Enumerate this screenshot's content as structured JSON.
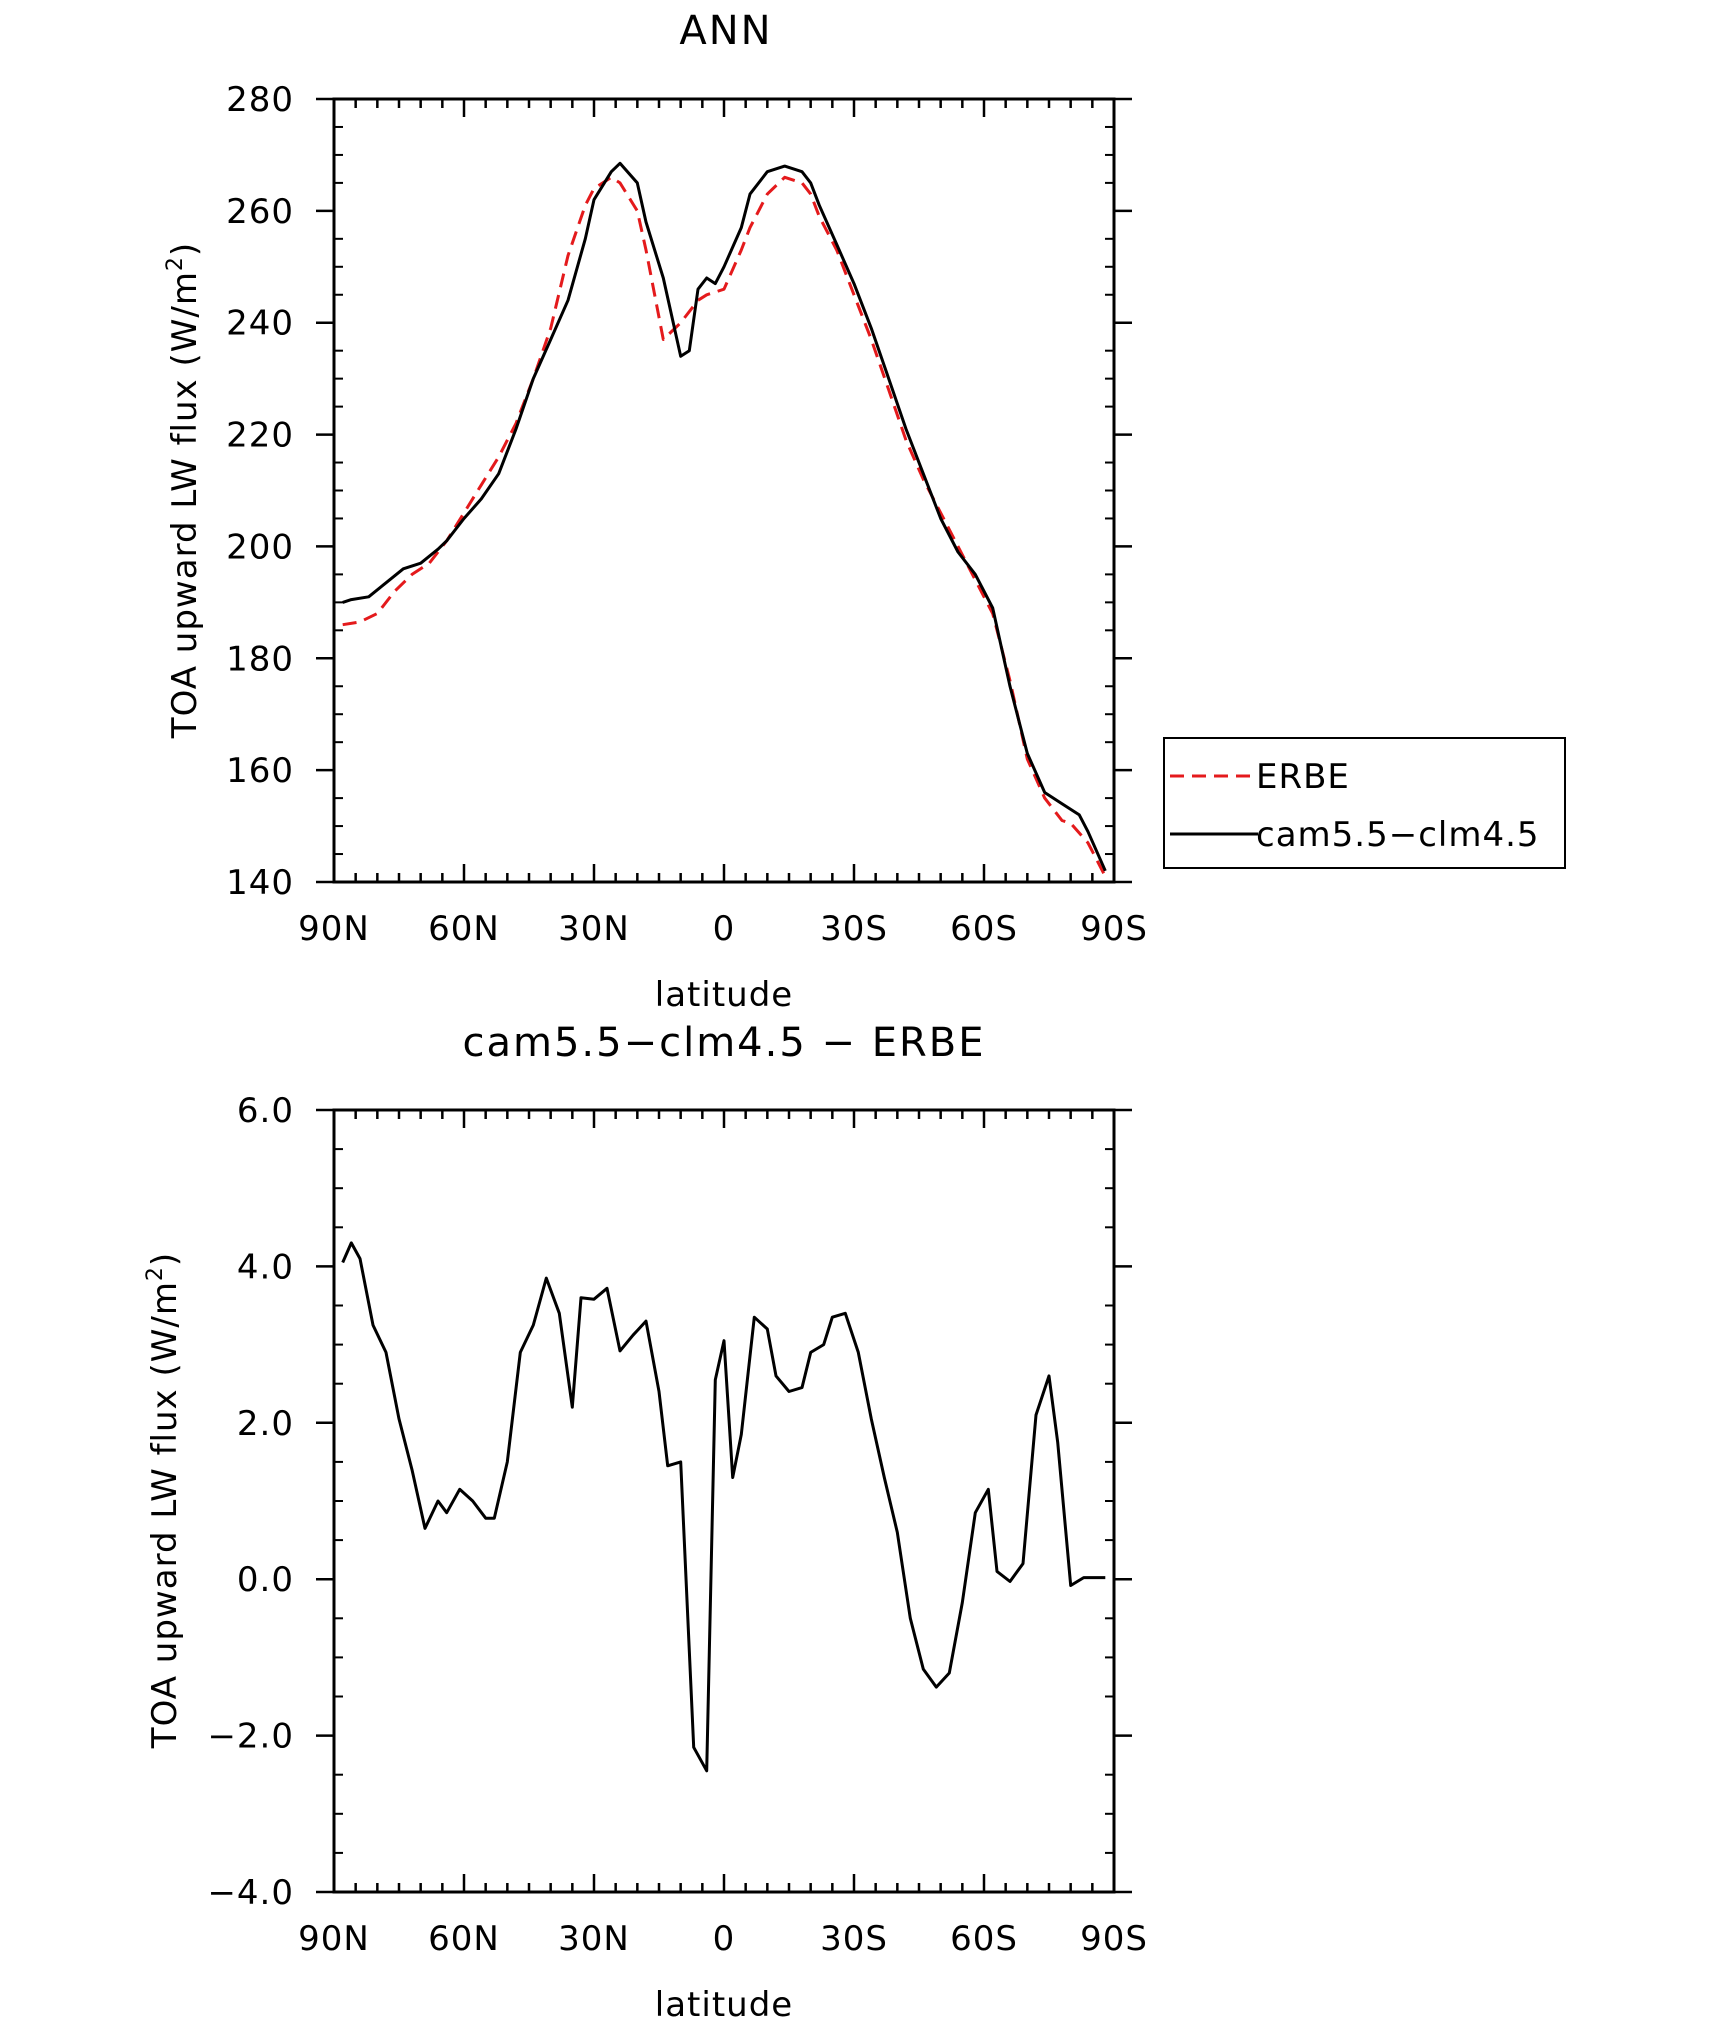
{
  "chart_data": [
    {
      "type": "line",
      "title": "ANN",
      "xlabel": "latitude",
      "ylabel": "TOA upward LW flux (W/m²)",
      "ylabel_main": "TOA upward LW flux (W/m",
      "ylabel_sup": "2",
      "ylabel_end": ")",
      "xlim": [
        90,
        -90
      ],
      "ylim": [
        140,
        280
      ],
      "x_ticks": [
        {
          "value": 90,
          "label": "90N"
        },
        {
          "value": 60,
          "label": "60N"
        },
        {
          "value": 30,
          "label": "30N"
        },
        {
          "value": 0,
          "label": "0"
        },
        {
          "value": -30,
          "label": "30S"
        },
        {
          "value": -60,
          "label": "60S"
        },
        {
          "value": -90,
          "label": "90S"
        }
      ],
      "y_ticks": [
        {
          "value": 140,
          "label": "140"
        },
        {
          "value": 160,
          "label": "160"
        },
        {
          "value": 180,
          "label": "180"
        },
        {
          "value": 200,
          "label": "200"
        },
        {
          "value": 220,
          "label": "220"
        },
        {
          "value": 240,
          "label": "240"
        },
        {
          "value": 260,
          "label": "260"
        },
        {
          "value": 280,
          "label": "280"
        }
      ],
      "legend": {
        "placement": "right",
        "entries": [
          {
            "name": "ERBE",
            "color": "#e41a1c",
            "dash": "dashed"
          },
          {
            "name": "cam5.5−clm4.5",
            "color": "#000000",
            "dash": "solid"
          }
        ]
      },
      "series": [
        {
          "name": "ERBE",
          "color": "#e41a1c",
          "dash": "dashed",
          "x": [
            88,
            84,
            80,
            76,
            72,
            68,
            64,
            60,
            56,
            52,
            48,
            44,
            40,
            36,
            32,
            30,
            26,
            24,
            20,
            18,
            14,
            10,
            6,
            4,
            0,
            -4,
            -6,
            -10,
            -14,
            -18,
            -20,
            -22,
            -26,
            -30,
            -34,
            -38,
            -42,
            -46,
            -50,
            -54,
            -58,
            -62,
            -66,
            -70,
            -74,
            -78,
            -80,
            -84,
            -88
          ],
          "y": [
            186,
            186.5,
            188,
            192,
            195,
            197,
            201,
            206,
            211,
            216,
            222,
            230,
            239,
            252,
            261,
            264,
            266,
            265,
            260,
            253,
            237,
            240,
            244,
            245,
            246,
            253,
            257,
            263,
            266,
            265,
            263,
            259,
            253,
            245,
            237,
            228,
            219,
            212,
            206,
            200,
            194,
            188,
            176,
            162,
            155,
            151,
            150.5,
            147,
            141
          ]
        },
        {
          "name": "cam5.5−clm4.5",
          "color": "#000000",
          "dash": "solid",
          "x": [
            88,
            86,
            82,
            78,
            74,
            70,
            66,
            64,
            60,
            56,
            52,
            48,
            44,
            40,
            36,
            32,
            30,
            26,
            24,
            20,
            18,
            14,
            10,
            8,
            6,
            4,
            2,
            0,
            -4,
            -6,
            -10,
            -14,
            -18,
            -20,
            -22,
            -26,
            -30,
            -34,
            -38,
            -42,
            -46,
            -50,
            -54,
            -58,
            -62,
            -66,
            -70,
            -74,
            -78,
            -82,
            -84,
            -88
          ],
          "y": [
            190,
            190.5,
            191,
            193.5,
            196,
            197,
            199.5,
            201,
            205,
            208.5,
            213,
            221,
            230,
            237,
            244,
            255,
            262,
            267,
            268.5,
            265,
            258,
            248,
            234,
            235,
            246,
            248,
            247,
            250,
            257,
            263,
            267,
            268,
            267,
            265,
            261,
            254,
            247,
            239,
            230,
            221,
            213,
            205,
            199,
            195,
            189,
            175,
            163,
            156,
            154,
            152,
            149,
            142
          ]
        }
      ]
    },
    {
      "type": "line",
      "title": "cam5.5−clm4.5 − ERBE",
      "xlabel": "latitude",
      "ylabel": "TOA upward LW flux (W/m²)",
      "ylabel_main": "TOA upward LW flux (W/m",
      "ylabel_sup": "2",
      "ylabel_end": ")",
      "xlim": [
        90,
        -90
      ],
      "ylim": [
        -4.0,
        6.0
      ],
      "x_ticks": [
        {
          "value": 90,
          "label": "90N"
        },
        {
          "value": 60,
          "label": "60N"
        },
        {
          "value": 30,
          "label": "30N"
        },
        {
          "value": 0,
          "label": "0"
        },
        {
          "value": -30,
          "label": "30S"
        },
        {
          "value": -60,
          "label": "60S"
        },
        {
          "value": -90,
          "label": "90S"
        }
      ],
      "y_ticks": [
        {
          "value": -4.0,
          "label": "−4.0"
        },
        {
          "value": -2.0,
          "label": "−2.0"
        },
        {
          "value": 0.0,
          "label": "0.0"
        },
        {
          "value": 2.0,
          "label": "2.0"
        },
        {
          "value": 4.0,
          "label": "4.0"
        },
        {
          "value": 6.0,
          "label": "6.0"
        }
      ],
      "series": [
        {
          "name": "",
          "color": "#000000",
          "dash": "solid",
          "x": [
            88,
            86,
            84,
            81,
            78,
            75,
            72,
            69,
            66,
            64,
            61,
            58,
            55,
            53,
            50,
            47,
            44,
            41,
            38,
            35,
            33,
            30,
            27,
            24,
            21,
            18,
            15,
            13,
            10,
            7,
            4,
            2,
            0,
            -2,
            -4,
            -7,
            -10,
            -12,
            -15,
            -18,
            -20,
            -23,
            -25,
            -28,
            -31,
            -34,
            -37,
            -40,
            -43,
            -46,
            -49,
            -52,
            -55,
            -58,
            -61,
            -63,
            -66,
            -69,
            -72,
            -75,
            -77,
            -80,
            -83,
            -85,
            -88
          ],
          "y": [
            4.05,
            4.3,
            4.1,
            3.25,
            2.9,
            2.05,
            1.4,
            0.65,
            1.0,
            0.85,
            1.15,
            1.0,
            0.78,
            0.78,
            1.5,
            2.9,
            3.25,
            3.85,
            3.4,
            2.2,
            3.6,
            3.58,
            3.72,
            2.92,
            3.12,
            3.3,
            2.4,
            1.45,
            1.5,
            -2.15,
            -2.45,
            2.55,
            3.05,
            1.3,
            1.85,
            3.35,
            3.2,
            2.6,
            2.4,
            2.45,
            2.9,
            3.0,
            3.35,
            3.4,
            2.9,
            2.05,
            1.3,
            0.6,
            -0.5,
            -1.15,
            -1.38,
            -1.2,
            -0.3,
            0.85,
            1.15,
            0.1,
            -0.03,
            0.2,
            2.1,
            2.6,
            1.75,
            -0.08,
            0.02,
            0.02,
            0.02
          ]
        }
      ]
    }
  ]
}
